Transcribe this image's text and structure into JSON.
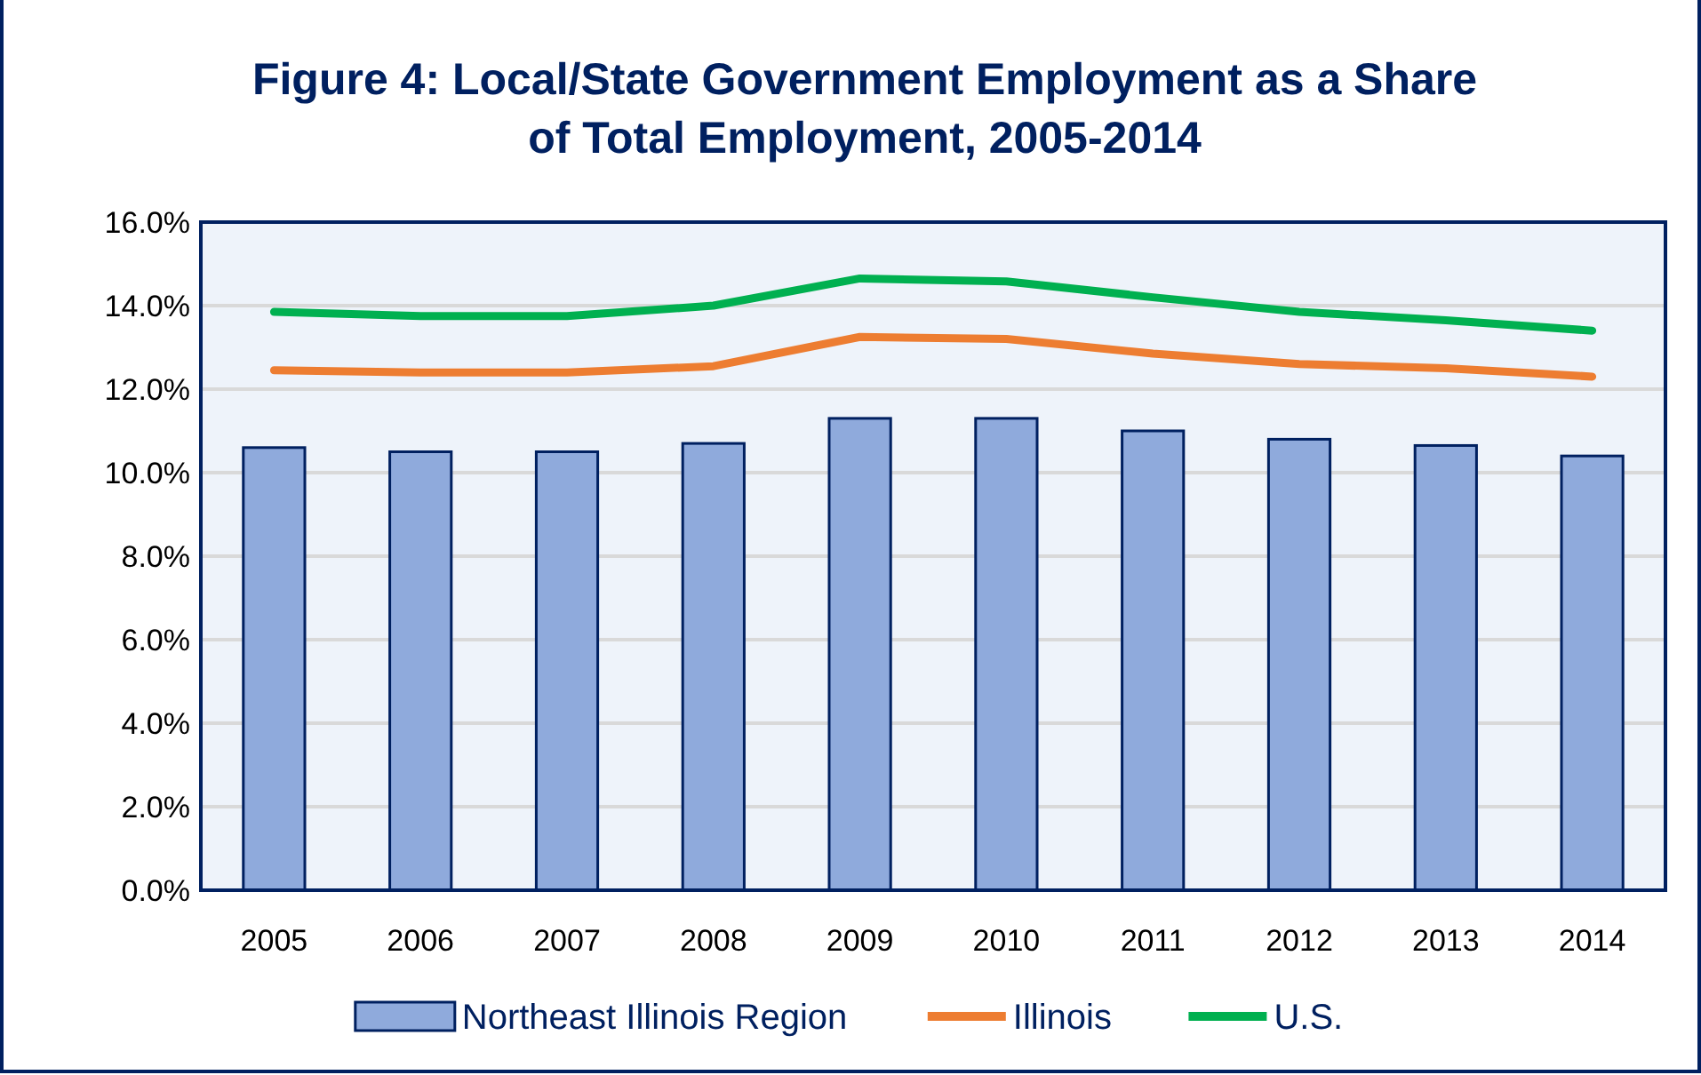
{
  "chart_data": {
    "type": "bar",
    "title": "Figure 4: Local/State Government Employment as a Share of Total Employment, 2005-2014",
    "categories": [
      "2005",
      "2006",
      "2007",
      "2008",
      "2009",
      "2010",
      "2011",
      "2012",
      "2013",
      "2014"
    ],
    "series": [
      {
        "name": "Northeast Illinois Region",
        "color": "#8faadc",
        "values": [
          10.6,
          10.5,
          10.5,
          10.7,
          11.3,
          11.3,
          11.0,
          10.8,
          10.65,
          10.4
        ]
      },
      {
        "name": "Illinois",
        "type": "line",
        "color": "#ed7d31",
        "values": [
          12.45,
          12.4,
          12.4,
          12.55,
          13.25,
          13.2,
          12.85,
          12.6,
          12.5,
          12.3
        ]
      },
      {
        "name": "U.S.",
        "type": "line",
        "color": "#00b050",
        "values": [
          13.85,
          13.75,
          13.75,
          14.0,
          14.65,
          14.58,
          14.2,
          13.85,
          13.65,
          13.4
        ]
      }
    ],
    "ylim": [
      0,
      16
    ],
    "yticks": [
      {
        "value": 0,
        "label": "0.0%"
      },
      {
        "value": 2,
        "label": "2.0%"
      },
      {
        "value": 4,
        "label": "4.0%"
      },
      {
        "value": 6,
        "label": "6.0%"
      },
      {
        "value": 8,
        "label": "8.0%"
      },
      {
        "value": 10,
        "label": "10.0%"
      },
      {
        "value": 12,
        "label": "12.0%"
      },
      {
        "value": 14,
        "label": "14.0%"
      },
      {
        "value": 16,
        "label": "16.0%"
      }
    ],
    "grid": "y",
    "legend": "bottom",
    "marker": "none",
    "line_style": "solid"
  }
}
